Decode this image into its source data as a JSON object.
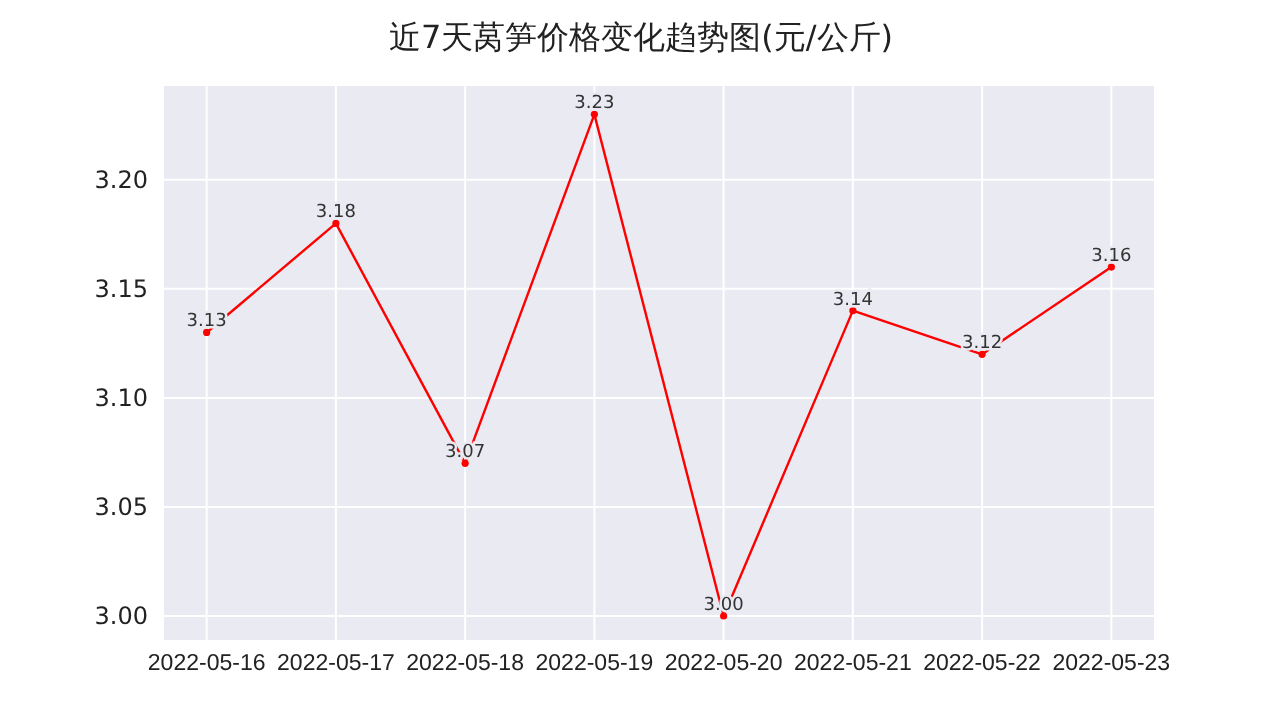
{
  "chart_data": {
    "type": "line",
    "title": "近7天莴笋价格变化趋势图(元/公斤)",
    "categories": [
      "2022-05-16",
      "2022-05-17",
      "2022-05-18",
      "2022-05-19",
      "2022-05-20",
      "2022-05-21",
      "2022-05-22",
      "2022-05-23"
    ],
    "series": [
      {
        "color": "#ff0000",
        "values": [
          3.13,
          3.18,
          3.07,
          3.23,
          3.0,
          3.14,
          3.12,
          3.16
        ]
      }
    ],
    "ylim": [
      2.989,
      3.243
    ],
    "yticks": [
      {
        "value": 3.0,
        "label": "3.00"
      },
      {
        "value": 3.05,
        "label": "3.05"
      },
      {
        "value": 3.1,
        "label": "3.10"
      },
      {
        "value": 3.15,
        "label": "3.15"
      },
      {
        "value": 3.2,
        "label": "3.20"
      }
    ],
    "value_labels": [
      "3.13",
      "3.18",
      "3.07",
      "3.23",
      "3.00",
      "3.14",
      "3.12",
      "3.16"
    ],
    "grid": true,
    "marker": "circle",
    "line_style": "solid"
  }
}
